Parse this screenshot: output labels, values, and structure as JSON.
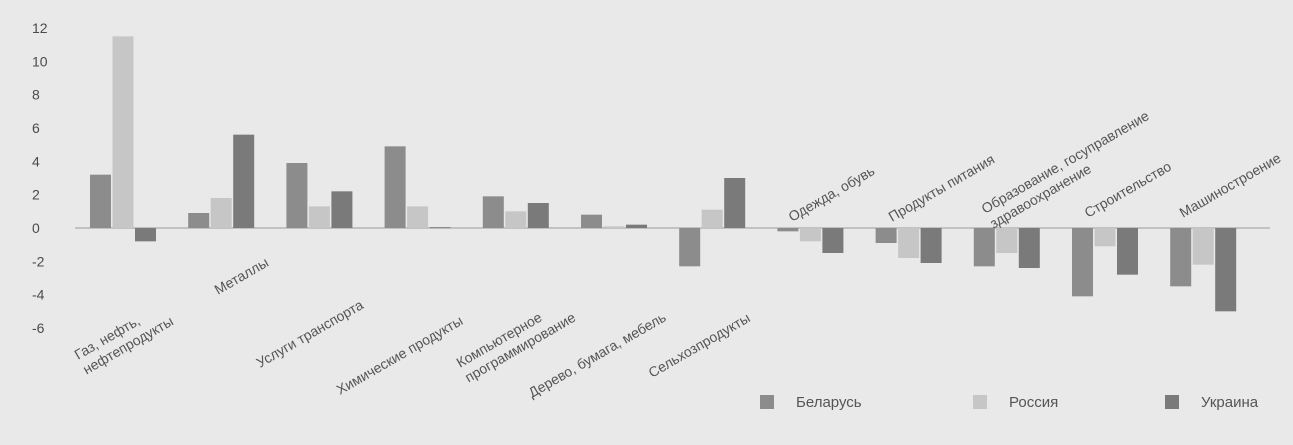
{
  "chart_data": {
    "type": "bar",
    "categories": [
      "Газ, нефть, нефтепродукты",
      "Металлы",
      "Услуги транспорта",
      "Химические продукты",
      "Компьютерное программирование",
      "Дерево, бумага, мебель",
      "Сельхозпродукты",
      "Одежда, обувь",
      "Продукты питания",
      "Образование, госуправление здравоохранение",
      "Строительство",
      "Машиностроение"
    ],
    "series": [
      {
        "name": "Беларусь",
        "color": "#8c8c8c",
        "values": [
          3.2,
          0.9,
          3.9,
          4.9,
          1.9,
          0.8,
          -2.3,
          -0.2,
          -0.9,
          -2.3,
          -4.1,
          -3.5
        ]
      },
      {
        "name": "Россия",
        "color": "#c6c6c6",
        "values": [
          11.5,
          1.8,
          1.3,
          1.3,
          1.0,
          0.1,
          1.1,
          -0.8,
          -1.8,
          -1.5,
          -1.1,
          -2.2
        ]
      },
      {
        "name": "Украина",
        "color": "#7a7a7a",
        "values": [
          -0.8,
          5.6,
          2.2,
          0.05,
          1.5,
          0.2,
          3.0,
          -1.5,
          -2.1,
          -2.4,
          -2.8,
          -5.0
        ]
      }
    ],
    "ylim": [
      -6,
      12
    ],
    "yticks": [
      "12",
      "10",
      "8",
      "6",
      "4",
      "2",
      "0",
      "-2",
      "-4",
      "-6"
    ],
    "ytick_values": [
      12,
      10,
      8,
      6,
      4,
      2,
      0,
      -2,
      -4,
      -6
    ],
    "grid": false,
    "legend": {
      "placement": "bottom-right"
    },
    "xlabel": "",
    "ylabel": "",
    "title": ""
  }
}
